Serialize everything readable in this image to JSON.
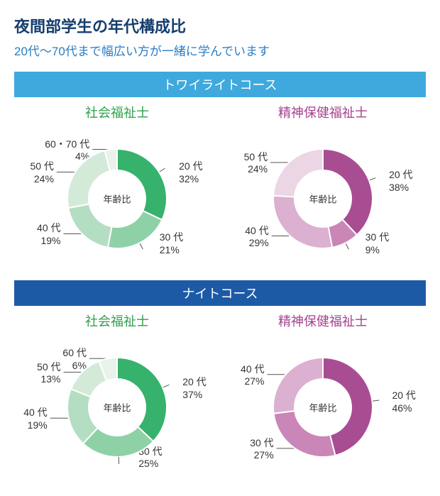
{
  "title": "夜間部学生の年代構成比",
  "subtitle": "20代〜70代まで幅広い方が一緒に学んでいます",
  "sections": [
    {
      "header": "トワイライトコース",
      "header_bg": "#3fa9dd",
      "charts": [
        {
          "title": "社会福祉士",
          "title_color": "#2fa04e",
          "center_label": "年齢比",
          "palette_type": "green",
          "slices": [
            {
              "age": "20 代",
              "pct": 32,
              "color": "#36b26c"
            },
            {
              "age": "30 代",
              "pct": 21,
              "color": "#8fd1a7"
            },
            {
              "age": "40 代",
              "pct": 19,
              "color": "#b4dec2"
            },
            {
              "age": "50 代",
              "pct": 24,
              "color": "#d4ead9"
            },
            {
              "age": "60・70 代",
              "pct": 4,
              "color": "#e9f3eb"
            }
          ]
        },
        {
          "title": "精神保健福祉士",
          "title_color": "#a6428f",
          "center_label": "年齢比",
          "palette_type": "purple",
          "slices": [
            {
              "age": "20 代",
              "pct": 38,
              "color": "#a94d93"
            },
            {
              "age": "30 代",
              "pct": 9,
              "color": "#c986b7"
            },
            {
              "age": "40 代",
              "pct": 29,
              "color": "#dbb0d0"
            },
            {
              "age": "50 代",
              "pct": 24,
              "color": "#ecd5e5"
            }
          ]
        }
      ]
    },
    {
      "header": "ナイトコース",
      "header_bg": "#1d5aa6",
      "charts": [
        {
          "title": "社会福祉士",
          "title_color": "#2fa04e",
          "center_label": "年齢比",
          "palette_type": "green",
          "slices": [
            {
              "age": "20 代",
              "pct": 37,
              "color": "#36b26c"
            },
            {
              "age": "30 代",
              "pct": 25,
              "color": "#8fd1a7"
            },
            {
              "age": "40 代",
              "pct": 19,
              "color": "#b4dec2"
            },
            {
              "age": "50 代",
              "pct": 13,
              "color": "#d4ead9"
            },
            {
              "age": "60 代",
              "pct": 6,
              "color": "#e9f3eb"
            }
          ]
        },
        {
          "title": "精神保健福祉士",
          "title_color": "#a6428f",
          "center_label": "年齢比",
          "palette_type": "purple",
          "slices": [
            {
              "age": "20 代",
              "pct": 46,
              "color": "#a94d93"
            },
            {
              "age": "30 代",
              "pct": 27,
              "color": "#c986b7"
            },
            {
              "age": "40 代",
              "pct": 27,
              "color": "#dbb0d0"
            }
          ]
        }
      ]
    }
  ],
  "donut": {
    "outer_radius": 70,
    "inner_radius": 40,
    "stroke": "#ffffff",
    "stroke_width": 2,
    "start_angle_deg": -90,
    "label_offset": 28
  },
  "background_color": "#ffffff"
}
